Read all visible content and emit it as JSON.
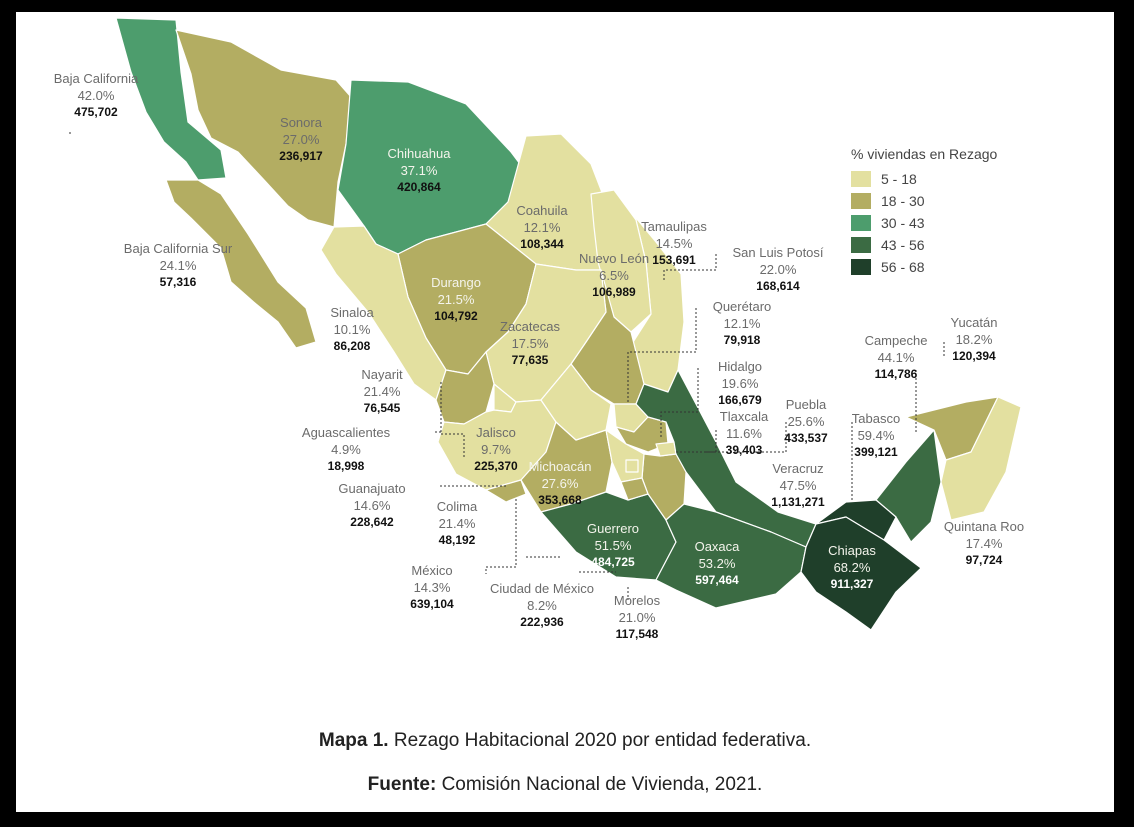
{
  "legend": {
    "title": "% viviendas en Rezago",
    "items": [
      {
        "range": "5 - 18",
        "color": "#e3e0a0"
      },
      {
        "range": "18 - 30",
        "color": "#b3ad62"
      },
      {
        "range": "30 - 43",
        "color": "#4d9d6d"
      },
      {
        "range": "43 - 56",
        "color": "#3b6b43"
      },
      {
        "range": "56 - 68",
        "color": "#1f3f2a"
      }
    ]
  },
  "states": [
    {
      "id": "baja-california",
      "name": "Baja California",
      "pct": "42.0%",
      "value": "475,702",
      "class": "30 - 43"
    },
    {
      "id": "sonora",
      "name": "Sonora",
      "pct": "27.0%",
      "value": "236,917",
      "class": "18 - 30"
    },
    {
      "id": "chihuahua",
      "name": "Chihuahua",
      "pct": "37.1%",
      "value": "420,864",
      "class": "30 - 43"
    },
    {
      "id": "coahuila",
      "name": "Coahuila",
      "pct": "12.1%",
      "value": "108,344",
      "class": "5 - 18"
    },
    {
      "id": "tamaulipas",
      "name": "Tamaulipas",
      "pct": "14.5%",
      "value": "153,691",
      "class": "5 - 18"
    },
    {
      "id": "nuevo-leon",
      "name": "Nuevo León",
      "pct": "6.5%",
      "value": "106,989",
      "class": "5 - 18"
    },
    {
      "id": "san-luis-potosi",
      "name": "San Luis Potosí",
      "pct": "22.0%",
      "value": "168,614",
      "class": "18 - 30"
    },
    {
      "id": "baja-california-sur",
      "name": "Baja California Sur",
      "pct": "24.1%",
      "value": "57,316",
      "class": "18 - 30"
    },
    {
      "id": "durango",
      "name": "Durango",
      "pct": "21.5%",
      "value": "104,792",
      "class": "18 - 30"
    },
    {
      "id": "sinaloa",
      "name": "Sinaloa",
      "pct": "10.1%",
      "value": "86,208",
      "class": "5 - 18"
    },
    {
      "id": "zacatecas",
      "name": "Zacatecas",
      "pct": "17.5%",
      "value": "77,635",
      "class": "5 - 18"
    },
    {
      "id": "queretaro",
      "name": "Querétaro",
      "pct": "12.1%",
      "value": "79,918",
      "class": "5 - 18"
    },
    {
      "id": "hidalgo",
      "name": "Hidalgo",
      "pct": "19.6%",
      "value": "166,679",
      "class": "18 - 30"
    },
    {
      "id": "campeche",
      "name": "Campeche",
      "pct": "44.1%",
      "value": "114,786",
      "class": "43 - 56"
    },
    {
      "id": "yucatan",
      "name": "Yucatán",
      "pct": "18.2%",
      "value": "120,394",
      "class": "18 - 30"
    },
    {
      "id": "nayarit",
      "name": "Nayarit",
      "pct": "21.4%",
      "value": "76,545",
      "class": "18 - 30"
    },
    {
      "id": "puebla",
      "name": "Puebla",
      "pct": "25.6%",
      "value": "433,537",
      "class": "18 - 30"
    },
    {
      "id": "tlaxcala",
      "name": "Tlaxcala",
      "pct": "11.6%",
      "value": "39,403",
      "class": "5 - 18"
    },
    {
      "id": "tabasco",
      "name": "Tabasco",
      "pct": "59.4%",
      "value": "399,121",
      "class": "56 - 68"
    },
    {
      "id": "aguascalientes",
      "name": "Aguascalientes",
      "pct": "4.9%",
      "value": "18,998",
      "class": "5 - 18"
    },
    {
      "id": "jalisco",
      "name": "Jalisco",
      "pct": "9.7%",
      "value": "225,370",
      "class": "5 - 18"
    },
    {
      "id": "veracruz",
      "name": "Veracruz",
      "pct": "47.5%",
      "value": "1,131,271",
      "class": "43 - 56"
    },
    {
      "id": "michoacan",
      "name": "Michoacán",
      "pct": "27.6%",
      "value": "353,668",
      "class": "18 - 30"
    },
    {
      "id": "guanajuato",
      "name": "Guanajuato",
      "pct": "14.6%",
      "value": "228,642",
      "class": "5 - 18"
    },
    {
      "id": "colima",
      "name": "Colima",
      "pct": "21.4%",
      "value": "48,192",
      "class": "18 - 30"
    },
    {
      "id": "guerrero",
      "name": "Guerrero",
      "pct": "51.5%",
      "value": "484,725",
      "class": "43 - 56"
    },
    {
      "id": "oaxaca",
      "name": "Oaxaca",
      "pct": "53.2%",
      "value": "597,464",
      "class": "43 - 56"
    },
    {
      "id": "chiapas",
      "name": "Chiapas",
      "pct": "68.2%",
      "value": "911,327",
      "class": "56 - 68"
    },
    {
      "id": "quintana-roo",
      "name": "Quintana Roo",
      "pct": "17.4%",
      "value": "97,724",
      "class": "5 - 18"
    },
    {
      "id": "mexico",
      "name": "México",
      "pct": "14.3%",
      "value": "639,104",
      "class": "5 - 18"
    },
    {
      "id": "ciudad-de-mexico",
      "name": "Ciudad de México",
      "pct": "8.2%",
      "value": "222,936",
      "class": "5 - 18"
    },
    {
      "id": "morelos",
      "name": "Morelos",
      "pct": "21.0%",
      "value": "117,548",
      "class": "18 - 30"
    }
  ],
  "caption": {
    "title_bold": "Mapa 1.",
    "title_text": "Rezago Habitacional 2020 por entidad federativa.",
    "source_bold": "Fuente:",
    "source_text": "Comisión Nacional de Vivienda, 2021."
  }
}
